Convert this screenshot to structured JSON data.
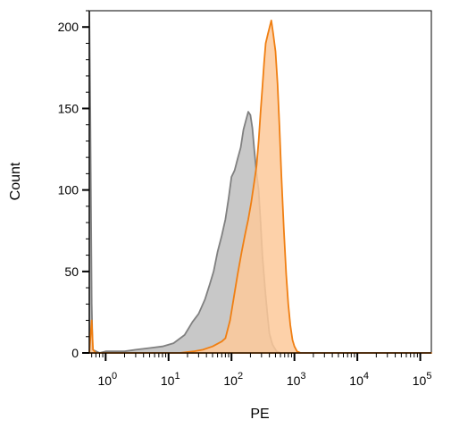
{
  "chart_data": {
    "type": "area",
    "xlabel": "PE",
    "ylabel": "Count",
    "xscale": "log",
    "xlim": [
      0.55,
      150000
    ],
    "ylim": [
      0,
      210
    ],
    "yticks": [
      0,
      50,
      100,
      150,
      200
    ],
    "ytick_labels": [
      "0",
      "50",
      "100",
      "150",
      "200"
    ],
    "xtick_major": [
      1,
      10,
      100,
      1000,
      10000,
      100000
    ],
    "xtick_labels": [
      {
        "base": "10",
        "exp": "0"
      },
      {
        "base": "10",
        "exp": "1"
      },
      {
        "base": "10",
        "exp": "2"
      },
      {
        "base": "10",
        "exp": "3"
      },
      {
        "base": "10",
        "exp": "4"
      },
      {
        "base": "10",
        "exp": "5"
      }
    ],
    "grid": false,
    "series": [
      {
        "role": "control",
        "fill": "#c8c8c8",
        "stroke": "#808080",
        "points": [
          [
            0.55,
            210
          ],
          [
            0.57,
            150
          ],
          [
            0.6,
            30
          ],
          [
            0.62,
            2
          ],
          [
            0.8,
            0
          ],
          [
            1.0,
            1
          ],
          [
            2.0,
            1
          ],
          [
            3.0,
            2
          ],
          [
            5.0,
            3
          ],
          [
            8.0,
            4
          ],
          [
            12,
            6
          ],
          [
            18,
            11
          ],
          [
            24,
            19
          ],
          [
            30,
            24
          ],
          [
            38,
            33
          ],
          [
            45,
            42
          ],
          [
            52,
            50
          ],
          [
            60,
            62
          ],
          [
            70,
            72
          ],
          [
            80,
            82
          ],
          [
            90,
            95
          ],
          [
            100,
            108
          ],
          [
            112,
            112
          ],
          [
            125,
            119
          ],
          [
            140,
            126
          ],
          [
            155,
            137
          ],
          [
            170,
            143
          ],
          [
            185,
            148
          ],
          [
            200,
            146
          ],
          [
            215,
            138
          ],
          [
            230,
            125
          ],
          [
            250,
            110
          ],
          [
            270,
            100
          ],
          [
            290,
            80
          ],
          [
            310,
            60
          ],
          [
            340,
            40
          ],
          [
            370,
            25
          ],
          [
            400,
            12
          ],
          [
            450,
            5
          ],
          [
            520,
            1
          ],
          [
            600,
            0
          ],
          [
            150000,
            0
          ]
        ]
      },
      {
        "role": "stained",
        "fill": "#fdc99a",
        "stroke": "#f07f12",
        "points": [
          [
            0.55,
            0
          ],
          [
            0.6,
            20
          ],
          [
            0.63,
            2
          ],
          [
            0.7,
            0
          ],
          [
            15,
            0
          ],
          [
            25,
            1
          ],
          [
            35,
            2
          ],
          [
            50,
            4
          ],
          [
            70,
            7
          ],
          [
            80,
            9
          ],
          [
            95,
            20
          ],
          [
            110,
            35
          ],
          [
            125,
            48
          ],
          [
            145,
            62
          ],
          [
            165,
            73
          ],
          [
            185,
            82
          ],
          [
            205,
            92
          ],
          [
            230,
            105
          ],
          [
            250,
            115
          ],
          [
            270,
            130
          ],
          [
            290,
            148
          ],
          [
            310,
            163
          ],
          [
            330,
            178
          ],
          [
            350,
            190
          ],
          [
            380,
            196
          ],
          [
            410,
            201
          ],
          [
            430,
            204
          ],
          [
            460,
            196
          ],
          [
            500,
            185
          ],
          [
            540,
            165
          ],
          [
            580,
            138
          ],
          [
            620,
            110
          ],
          [
            680,
            75
          ],
          [
            740,
            48
          ],
          [
            800,
            30
          ],
          [
            860,
            17
          ],
          [
            930,
            8
          ],
          [
            1000,
            4
          ],
          [
            1100,
            1
          ],
          [
            1250,
            0
          ],
          [
            150000,
            0
          ]
        ]
      }
    ]
  }
}
